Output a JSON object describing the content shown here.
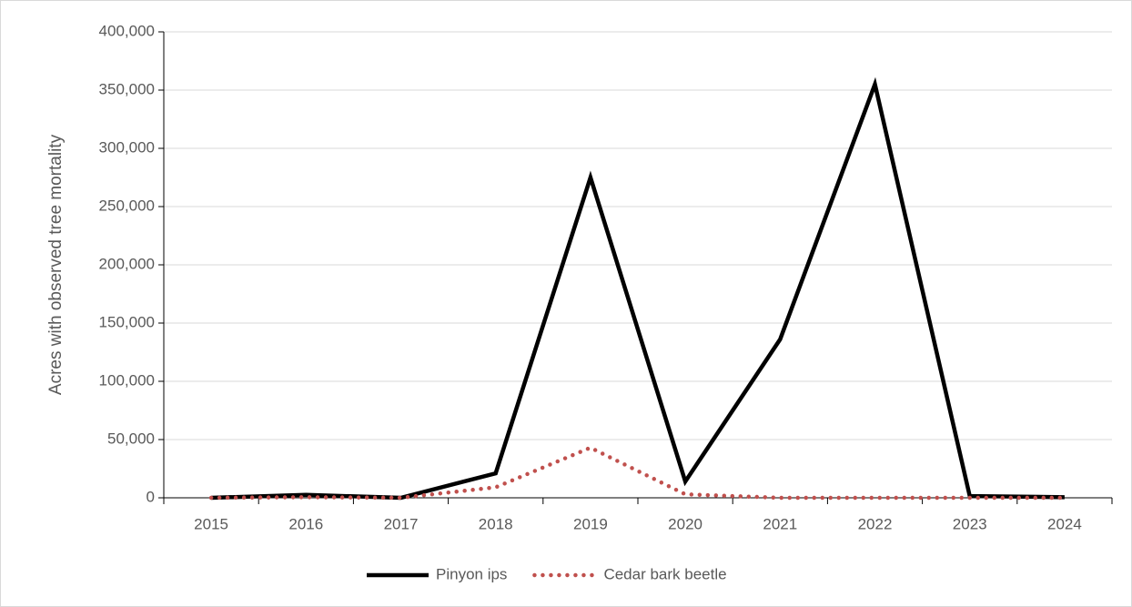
{
  "chart_data": {
    "type": "line",
    "y_axis_label": "Acres with observed tree mortality",
    "categories": [
      "2015",
      "2016",
      "2017",
      "2018",
      "2019",
      "2020",
      "2021",
      "2022",
      "2023",
      "2024"
    ],
    "series": [
      {
        "name": "Pinyon ips",
        "color": "#000000",
        "style": "solid",
        "values": [
          0,
          2500,
          0,
          21000,
          275000,
          14000,
          136000,
          355000,
          1500,
          500
        ]
      },
      {
        "name": "Cedar bark beetle",
        "color": "#c0504d",
        "style": "dotted",
        "values": [
          0,
          500,
          0,
          9000,
          43000,
          3000,
          0,
          0,
          0,
          0
        ]
      }
    ],
    "ylim": [
      0,
      400000
    ],
    "yticks": [
      0,
      {
        "value": 50000,
        "label": "50,000"
      },
      {
        "value": 100000,
        "label": "100,000"
      },
      {
        "value": 150000,
        "label": "150,000"
      },
      {
        "value": 200000,
        "label": "200,000"
      },
      {
        "value": 250000,
        "label": "250,000"
      },
      {
        "value": 300000,
        "label": "300,000"
      },
      {
        "value": 350000,
        "label": "350,000"
      },
      {
        "value": 400000,
        "label": "400,000"
      }
    ],
    "grid": true,
    "legend": "bottom"
  }
}
